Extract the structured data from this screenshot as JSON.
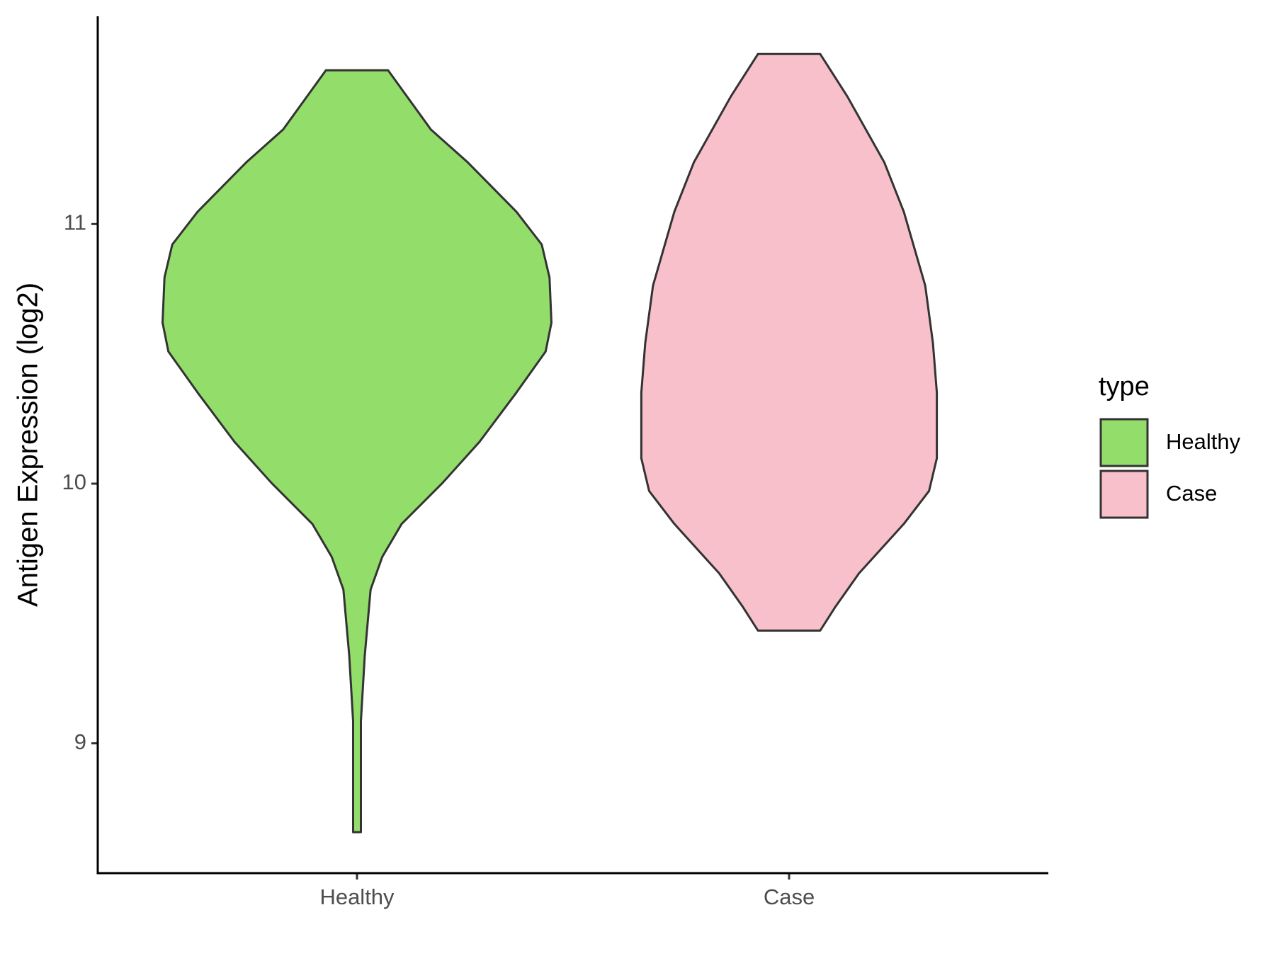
{
  "chart_data": {
    "type": "violin",
    "y_label": "Antigen Expression (log2)",
    "categories": [
      "Healthy",
      "Case"
    ],
    "legend_title": "type",
    "legend": "right",
    "ylim": [
      8.5,
      11.8
    ],
    "yticks": [
      9,
      10,
      11
    ],
    "series": [
      {
        "name": "Healthy",
        "color": "#93dd6b",
        "y": [
          11.592,
          11.364,
          11.237,
          11.047,
          10.921,
          10.794,
          10.62,
          10.509,
          10.351,
          10.161,
          10.003,
          9.845,
          9.718,
          9.592,
          9.339,
          9.085,
          8.864,
          8.658
        ],
        "density": [
          0.16,
          0.38,
          0.57,
          0.82,
          0.95,
          0.99,
          1.0,
          0.97,
          0.82,
          0.63,
          0.44,
          0.23,
          0.13,
          0.07,
          0.04,
          0.02,
          0.02,
          0.02
        ]
      },
      {
        "name": "Case",
        "color": "#f7c0cb",
        "y": [
          11.655,
          11.491,
          11.237,
          11.047,
          10.763,
          10.541,
          10.351,
          10.098,
          9.972,
          9.845,
          9.655,
          9.528,
          9.434
        ],
        "density": [
          0.16,
          0.3,
          0.49,
          0.59,
          0.7,
          0.74,
          0.76,
          0.76,
          0.72,
          0.59,
          0.36,
          0.24,
          0.16
        ]
      }
    ]
  }
}
